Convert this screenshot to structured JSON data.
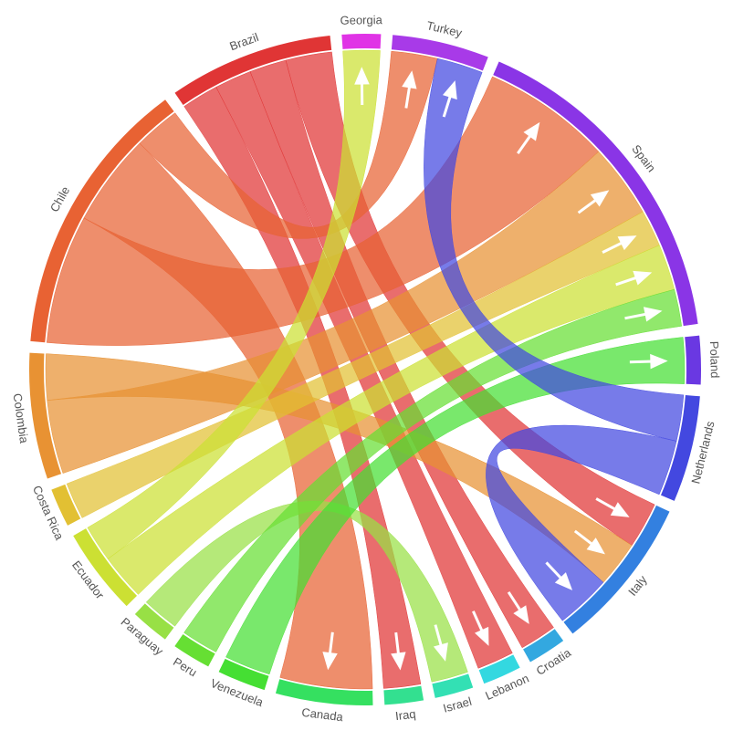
{
  "chart_data": {
    "type": "chord",
    "nodes": [
      {
        "name": "Georgia",
        "color": "#e033e6"
      },
      {
        "name": "Turkey",
        "color": "#a83ae8"
      },
      {
        "name": "Spain",
        "color": "#8a35e6"
      },
      {
        "name": "Poland",
        "color": "#6a38e2"
      },
      {
        "name": "Netherlands",
        "color": "#4348e0"
      },
      {
        "name": "Italy",
        "color": "#3380e0"
      },
      {
        "name": "Croatia",
        "color": "#33a8e0"
      },
      {
        "name": "Lebanon",
        "color": "#33d8e0"
      },
      {
        "name": "Israel",
        "color": "#33e0b4"
      },
      {
        "name": "Iraq",
        "color": "#33e090"
      },
      {
        "name": "Canada",
        "color": "#35e060"
      },
      {
        "name": "Venezuela",
        "color": "#45df33"
      },
      {
        "name": "Peru",
        "color": "#66df33"
      },
      {
        "name": "Paraguay",
        "color": "#98e045"
      },
      {
        "name": "Ecuador",
        "color": "#cce033"
      },
      {
        "name": "Costa Rica",
        "color": "#e2c033"
      },
      {
        "name": "Colombia",
        "color": "#e89233"
      },
      {
        "name": "Chile",
        "color": "#e86233"
      },
      {
        "name": "Brazil",
        "color": "#e03535"
      }
    ],
    "flows": [
      {
        "source": 18,
        "target": 9,
        "value": 4
      },
      {
        "source": 18,
        "target": 7,
        "value": 4
      },
      {
        "source": 18,
        "target": 6,
        "value": 4
      },
      {
        "source": 18,
        "target": 5,
        "value": 5
      },
      {
        "source": 17,
        "target": 2,
        "value": 14
      },
      {
        "source": 17,
        "target": 10,
        "value": 10
      },
      {
        "source": 17,
        "target": 1,
        "value": 5
      },
      {
        "source": 16,
        "target": 2,
        "value": 8
      },
      {
        "source": 16,
        "target": 5,
        "value": 5
      },
      {
        "source": 15,
        "target": 2,
        "value": 4
      },
      {
        "source": 14,
        "target": 2,
        "value": 5
      },
      {
        "source": 14,
        "target": 0,
        "value": 4
      },
      {
        "source": 13,
        "target": 8,
        "value": 4
      },
      {
        "source": 12,
        "target": 2,
        "value": 4
      },
      {
        "source": 11,
        "target": 3,
        "value": 5
      },
      {
        "source": 4,
        "target": 1,
        "value": 5
      },
      {
        "source": 4,
        "target": 5,
        "value": 6
      }
    ]
  }
}
